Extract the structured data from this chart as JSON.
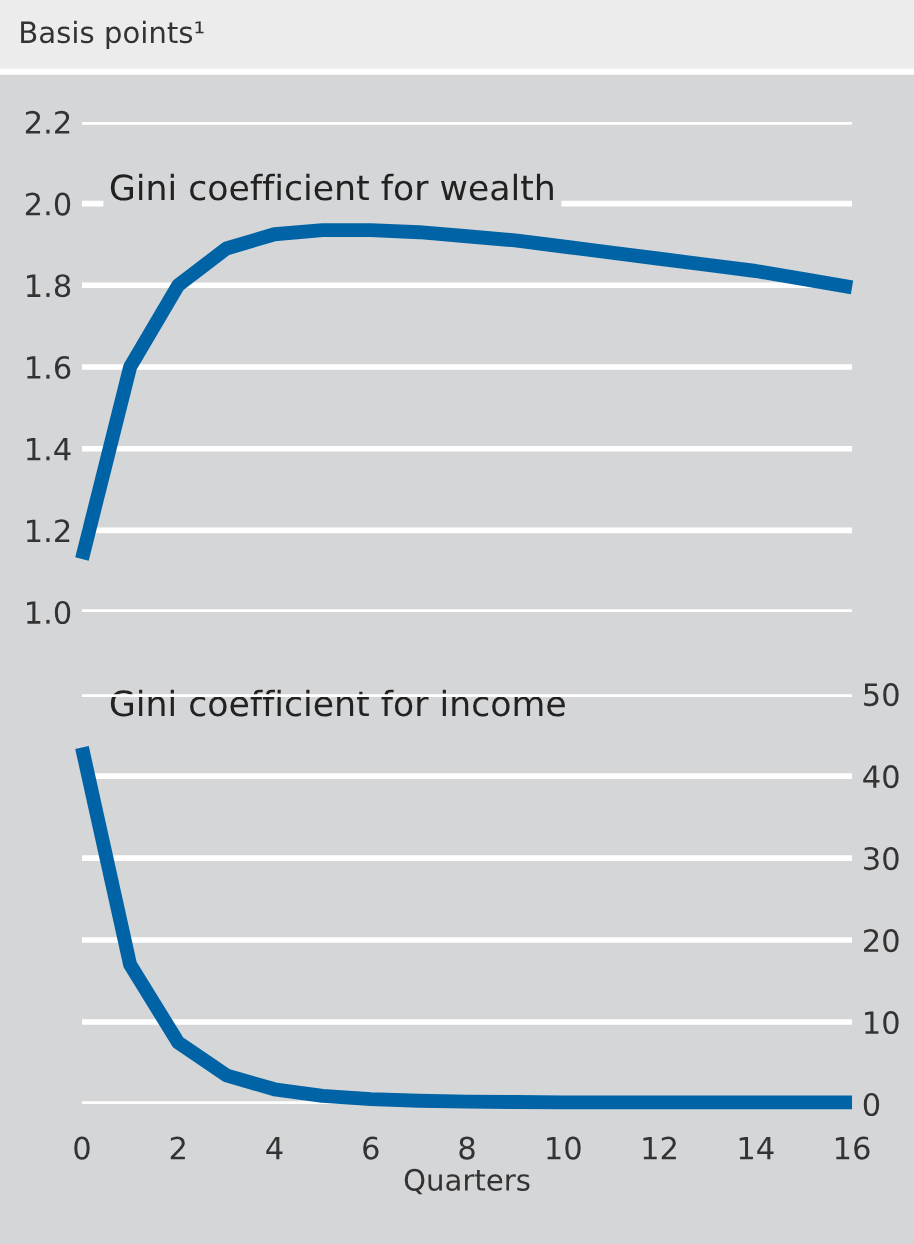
{
  "chart_data": [
    {
      "type": "line",
      "title": "Gini coefficient for wealth",
      "annotations": [
        "Basis points¹"
      ],
      "x": [
        0,
        1,
        2,
        3,
        4,
        5,
        6,
        7,
        8,
        9,
        10,
        11,
        12,
        13,
        14,
        15,
        16
      ],
      "series": [
        {
          "color": "#0063a6",
          "values": [
            1.13,
            1.6,
            1.8,
            1.89,
            1.925,
            1.935,
            1.935,
            1.93,
            1.92,
            1.91,
            1.895,
            1.88,
            1.865,
            1.85,
            1.835,
            1.815,
            1.795
          ]
        }
      ],
      "xlim": [
        0,
        16
      ],
      "ylim": [
        1.0,
        2.2
      ],
      "yticks": [
        {
          "value": 1.0,
          "label": "1.0"
        },
        1.2,
        1.4,
        1.6,
        1.8,
        {
          "value": 2.0,
          "label": "2.0"
        },
        2.2
      ],
      "grid": "y",
      "tick_labels": "y",
      "line_style": "solid"
    },
    {
      "type": "line",
      "title": "Gini coefficient for income",
      "xlabel": "Quarters",
      "x": [
        0,
        1,
        2,
        3,
        4,
        5,
        6,
        7,
        8,
        9,
        10,
        11,
        12,
        13,
        14,
        15,
        16
      ],
      "series": [
        {
          "color": "#0063a6",
          "axis": "y2",
          "values": [
            43.5,
            17,
            7.5,
            3.5,
            1.8,
            1.0,
            0.6,
            0.4,
            0.3,
            0.25,
            0.2,
            0.2,
            0.2,
            0.2,
            0.2,
            0.2,
            0.2
          ]
        }
      ],
      "xlim": [
        0,
        16
      ],
      "xticks": [
        0,
        2,
        4,
        6,
        8,
        10,
        12,
        14,
        16
      ],
      "y2lim": [
        0,
        50
      ],
      "y2ticks": [
        0,
        10,
        20,
        30,
        40,
        50
      ],
      "grid": "y",
      "line_style": "solid"
    }
  ]
}
